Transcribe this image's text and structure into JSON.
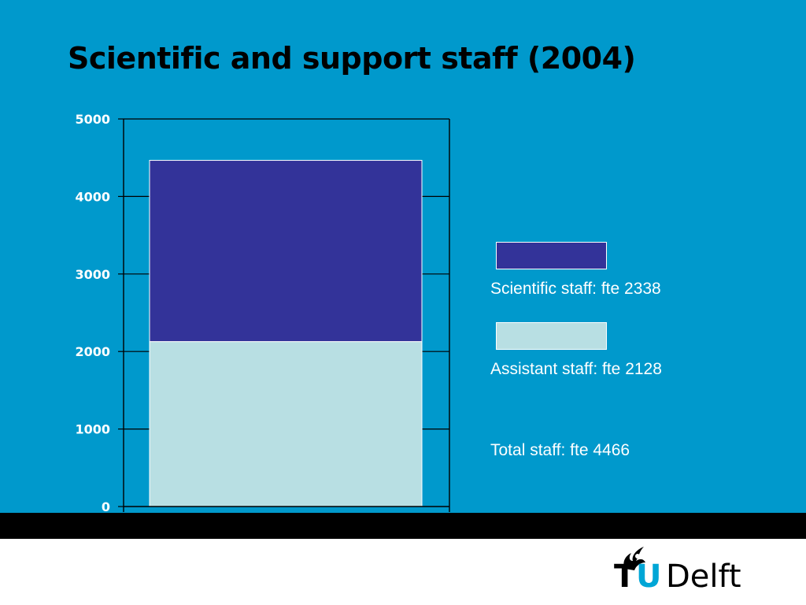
{
  "slide": {
    "title": "Scientific and support staff (2004)",
    "background_color": "#0099cc"
  },
  "chart_data": {
    "type": "bar",
    "stacked": true,
    "categories": [
      ""
    ],
    "series": [
      {
        "name": "Assistant staff",
        "values": [
          2128
        ],
        "color": "#b8dfe3"
      },
      {
        "name": "Scientific staff",
        "values": [
          2338
        ],
        "color": "#333399"
      }
    ],
    "ylim": [
      0,
      5000
    ],
    "yticks": [
      0,
      1000,
      2000,
      3000,
      4000,
      5000
    ],
    "ytick_labels": [
      "0",
      "1000",
      "2000",
      "3000",
      "4000",
      "5000"
    ],
    "grid": true,
    "legend_position": "right"
  },
  "legend": {
    "scientific": "Scientific staff: fte 2338",
    "assistant": "Assistant staff: fte 2128",
    "total": "Total staff: fte 4466"
  },
  "logo": {
    "t": "T",
    "u": "U",
    "name": "Delft",
    "flame_icon": "flame-icon"
  }
}
